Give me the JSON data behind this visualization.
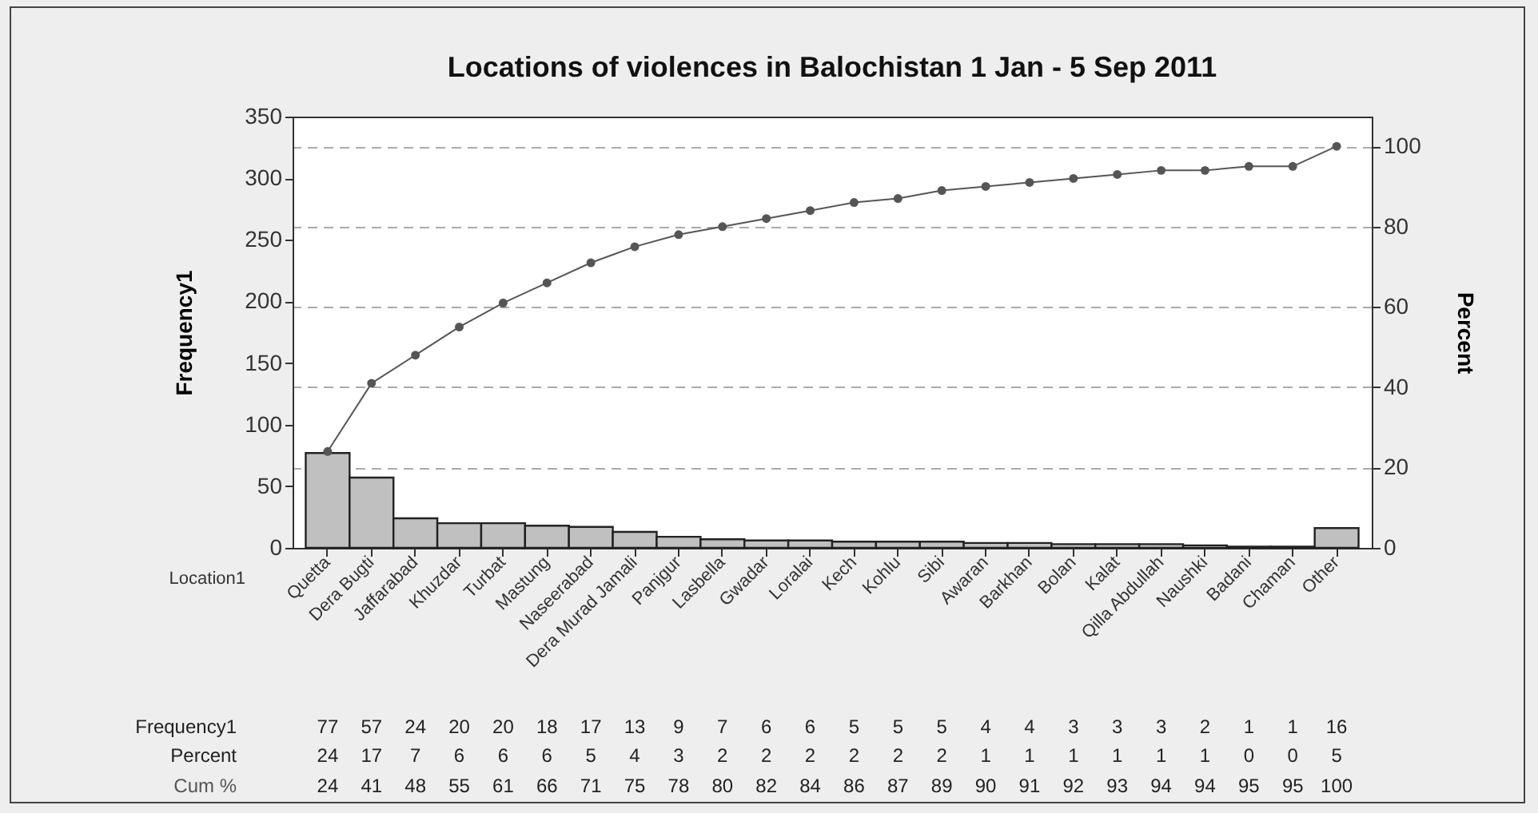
{
  "chart_data": {
    "type": "bar",
    "title": "Locations of violences in Balochistan 1 Jan - 5 Sep 2011",
    "xlabel": "Location1",
    "ylabel": "Frequency1",
    "y2label": "Percent",
    "categories": [
      "Quetta",
      "Dera Bugti",
      "Jaffarabad",
      "Khuzdar",
      "Turbat",
      "Mastung",
      "Naseerabad",
      "Dera Murad Jamali",
      "Panjgur",
      "Lasbella",
      "Gwadar",
      "Loralai",
      "Kech",
      "Kohlu",
      "Sibi",
      "Awaran",
      "Barkhan",
      "Bolan",
      "Kalat",
      "Qilla Abdullah",
      "Naushki",
      "Badani",
      "Chaman",
      "Other"
    ],
    "series": [
      {
        "name": "Frequency1",
        "color": "#c0c0c0",
        "values": [
          77,
          57,
          24,
          20,
          20,
          18,
          17,
          13,
          9,
          7,
          6,
          6,
          5,
          5,
          5,
          4,
          4,
          3,
          3,
          3,
          2,
          1,
          1,
          16
        ]
      },
      {
        "name": "Cum %",
        "type": "line",
        "axis": "y2",
        "color": "#555555",
        "values": [
          24,
          41,
          48,
          55,
          61,
          66,
          71,
          75,
          78,
          80,
          82,
          84,
          86,
          87,
          89,
          90,
          91,
          92,
          93,
          94,
          94,
          95,
          95,
          100
        ]
      }
    ],
    "data_labels": true,
    "annotations": [
      "Percent",
      "24",
      "17",
      "7",
      "6",
      "6",
      "6",
      "5",
      "4",
      "3",
      "2",
      "2",
      "2",
      "2",
      "2",
      "2",
      "1",
      "1",
      "1",
      "1",
      "1",
      "1",
      "0",
      "0",
      "5"
    ],
    "ylim": [
      0,
      350
    ],
    "yticks": [
      0,
      50,
      100,
      150,
      200,
      250,
      300,
      350
    ],
    "y2lim": [
      0,
      107.4
    ],
    "y2ticks": [
      0,
      20,
      40,
      60,
      80,
      100
    ],
    "grid": "y2",
    "marker": "circle",
    "line_style": "solid"
  }
}
